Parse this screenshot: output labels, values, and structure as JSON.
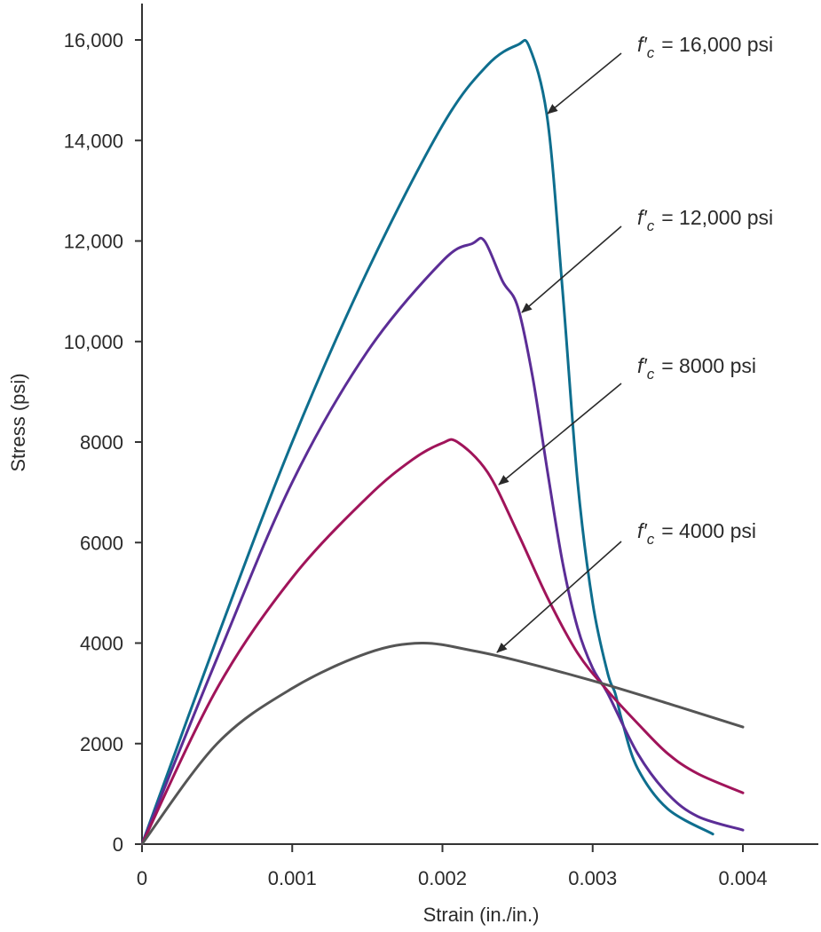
{
  "chart_data": {
    "type": "line",
    "title": "",
    "xlabel": "Strain (in./in.)",
    "ylabel": "Stress (psi)",
    "xlim": [
      0,
      0.0045
    ],
    "ylim": [
      0,
      16000
    ],
    "xticks": [
      0,
      0.001,
      0.002,
      0.003,
      0.004
    ],
    "xtick_labels": [
      "0",
      "0.001",
      "0.002",
      "0.003",
      "0.004"
    ],
    "yticks": [
      0,
      2000,
      4000,
      6000,
      8000,
      10000,
      12000,
      14000,
      16000
    ],
    "ytick_labels": [
      "0",
      "2000",
      "4000",
      "6000",
      "8000",
      "10,000",
      "12,000",
      "14,000",
      "16,000"
    ],
    "grid": false,
    "series": [
      {
        "name": "f′c = 16,000 psi",
        "label_symbol": "f′",
        "label_subscript": "c",
        "label_value": "= 16,000 psi",
        "color": "#0e6e8e",
        "points": [
          [
            0,
            0
          ],
          [
            0.0005,
            4100
          ],
          [
            0.001,
            8000
          ],
          [
            0.0015,
            11400
          ],
          [
            0.002,
            14300
          ],
          [
            0.0023,
            15500
          ],
          [
            0.0025,
            15900
          ],
          [
            0.00258,
            15850
          ],
          [
            0.0027,
            14400
          ],
          [
            0.0028,
            11000
          ],
          [
            0.0029,
            7200
          ],
          [
            0.003,
            4800
          ],
          [
            0.0031,
            3400
          ],
          [
            0.00315,
            3000
          ],
          [
            0.0032,
            2400
          ],
          [
            0.0033,
            1500
          ],
          [
            0.0035,
            700
          ],
          [
            0.0038,
            200
          ]
        ]
      },
      {
        "name": "f′c = 12,000 psi",
        "label_symbol": "f′",
        "label_subscript": "c",
        "label_value": "= 12,000 psi",
        "color": "#5b2d96",
        "points": [
          [
            0,
            0
          ],
          [
            0.0005,
            3700
          ],
          [
            0.001,
            7200
          ],
          [
            0.0015,
            9800
          ],
          [
            0.002,
            11600
          ],
          [
            0.0022,
            11950
          ],
          [
            0.00228,
            12000
          ],
          [
            0.0024,
            11200
          ],
          [
            0.0025,
            10700
          ],
          [
            0.0026,
            9300
          ],
          [
            0.0027,
            7400
          ],
          [
            0.0028,
            5600
          ],
          [
            0.0029,
            4300
          ],
          [
            0.003,
            3500
          ],
          [
            0.0031,
            3000
          ],
          [
            0.0033,
            1800
          ],
          [
            0.0035,
            1000
          ],
          [
            0.0037,
            550
          ],
          [
            0.004,
            280
          ]
        ]
      },
      {
        "name": "f′c = 8000 psi",
        "label_symbol": "f′",
        "label_subscript": "c",
        "label_value": "= 8000 psi",
        "color": "#a0145a",
        "points": [
          [
            0,
            0
          ],
          [
            0.0005,
            3100
          ],
          [
            0.001,
            5300
          ],
          [
            0.0015,
            6900
          ],
          [
            0.0018,
            7650
          ],
          [
            0.002,
            7980
          ],
          [
            0.0021,
            8000
          ],
          [
            0.0023,
            7400
          ],
          [
            0.0025,
            6200
          ],
          [
            0.0027,
            4900
          ],
          [
            0.0029,
            3800
          ],
          [
            0.0031,
            3050
          ],
          [
            0.0033,
            2400
          ],
          [
            0.0035,
            1800
          ],
          [
            0.0037,
            1400
          ],
          [
            0.004,
            1020
          ]
        ]
      },
      {
        "name": "f′c = 4000 psi",
        "label_symbol": "f′",
        "label_subscript": "c",
        "label_value": "= 4000 psi",
        "color": "#555555",
        "points": [
          [
            0,
            0
          ],
          [
            0.0005,
            2000
          ],
          [
            0.001,
            3100
          ],
          [
            0.0015,
            3800
          ],
          [
            0.00186,
            4000
          ],
          [
            0.0022,
            3850
          ],
          [
            0.0025,
            3650
          ],
          [
            0.003,
            3250
          ],
          [
            0.0035,
            2800
          ],
          [
            0.004,
            2330
          ]
        ]
      }
    ]
  }
}
